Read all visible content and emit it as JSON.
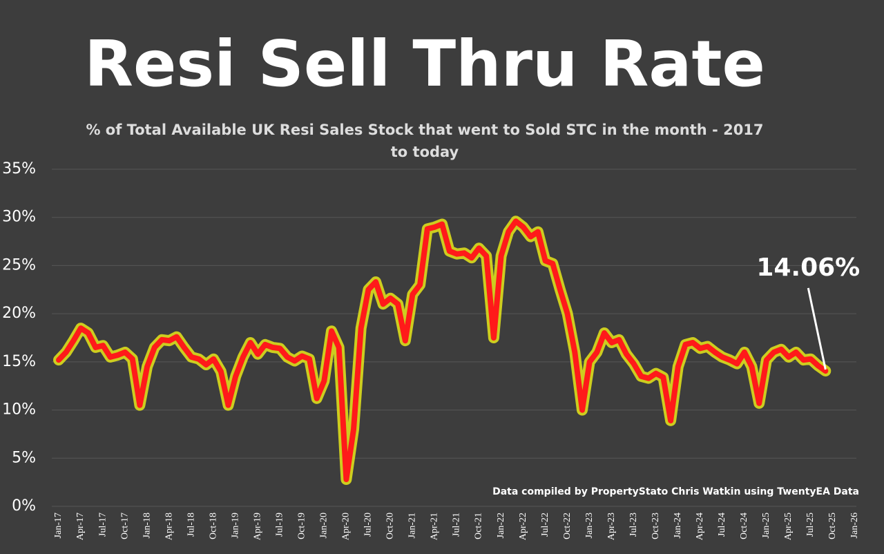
{
  "chart_data": {
    "type": "line",
    "title": "Resi Sell Thru Rate",
    "subtitle": "% of Total Available UK Resi Sales Stock that went to Sold STC in the month - 2017 to today",
    "source": "Data compiled by PropertyStato Chris Watkin using TwentyEA Data",
    "categories": [
      "Jan-17",
      null,
      null,
      "Apr-17",
      null,
      null,
      "Jul-17",
      null,
      null,
      "Oct-17",
      null,
      null,
      "Jan-18",
      null,
      null,
      "Apr-18",
      null,
      null,
      "Jul-18",
      null,
      null,
      "Oct-18",
      null,
      null,
      "Jan-19",
      null,
      null,
      "Apr-19",
      null,
      null,
      "Jul-19",
      null,
      null,
      "Oct-19",
      null,
      null,
      "Jan-20",
      null,
      null,
      "Apr-20",
      null,
      null,
      "Jul-20",
      null,
      null,
      "Oct-20",
      null,
      null,
      "Jan-21",
      null,
      null,
      "Apr-21",
      null,
      null,
      "Jul-21",
      null,
      null,
      "Oct-21",
      null,
      null,
      "Jan-22",
      null,
      null,
      "Apr-22",
      null,
      null,
      "Jul-22",
      null,
      null,
      "Oct-22",
      null,
      null,
      "Jan-23",
      null,
      null,
      "Apr-23",
      null,
      null,
      "Jul-23",
      null,
      null,
      "Oct-23",
      null,
      null,
      "Jan-24",
      null,
      null,
      "Apr-24",
      null,
      null,
      "Jul-24",
      null,
      null,
      "Oct-24",
      null,
      null,
      "Jan-25",
      null,
      null,
      "Apr-25",
      null,
      null,
      "Jul-25",
      null,
      null,
      "Oct-25",
      null,
      null,
      "Jan-26"
    ],
    "values": [
      15.2,
      16,
      17.2,
      18.5,
      18,
      16.5,
      16.7,
      15.5,
      15.7,
      16,
      15.3,
      10.5,
      14.5,
      16.5,
      17.3,
      17.2,
      17.6,
      16.5,
      15.5,
      15.3,
      14.7,
      15.3,
      14,
      10.5,
      13.5,
      15.5,
      17,
      15.8,
      16.8,
      16.5,
      16.4,
      15.5,
      15.1,
      15.6,
      15.3,
      11.2,
      13,
      18.2,
      16.5,
      2.8,
      8,
      18.5,
      22.5,
      23.3,
      21,
      21.6,
      21,
      17.2,
      22,
      23,
      28.8,
      29,
      29.3,
      26.5,
      26.2,
      26.3,
      25.8,
      26.8,
      26,
      17.5,
      26,
      28.5,
      29.6,
      29,
      28,
      28.5,
      25.5,
      25.2,
      22.5,
      20,
      16,
      10,
      15,
      16,
      18,
      17,
      17.3,
      15.8,
      14.8,
      13.5,
      13.3,
      13.8,
      13.4,
      8.9,
      14.5,
      16.8,
      17,
      16.4,
      16.6,
      16,
      15.5,
      15.2,
      14.8,
      16,
      14.5,
      10.7,
      15.2,
      16,
      16.3,
      15.5,
      16,
      15.2,
      15.3,
      14.6,
      14.06,
      null,
      null,
      null,
      null
    ],
    "value_labels": [
      null,
      null,
      null,
      null,
      null,
      null,
      null,
      null,
      null,
      null,
      null,
      null,
      null,
      null,
      null,
      null,
      null,
      null,
      null,
      null,
      null,
      null,
      null,
      null,
      null,
      null,
      null,
      null,
      null,
      null,
      null,
      null,
      null,
      null,
      null,
      null,
      null,
      null,
      null,
      null,
      null,
      null,
      null,
      null,
      null,
      null,
      null,
      null,
      null,
      null,
      null,
      null,
      null,
      null,
      null,
      null,
      null,
      null,
      null,
      null,
      null,
      null,
      null,
      null,
      null,
      null,
      null,
      null,
      null,
      null,
      null,
      null,
      null,
      null,
      null,
      null,
      null,
      null,
      null,
      null,
      null,
      null,
      null,
      null,
      null,
      null,
      null,
      null,
      null,
      null,
      null,
      null,
      null,
      null,
      null,
      null,
      null,
      null,
      null,
      null,
      null,
      null,
      null,
      null,
      "14.06%",
      null,
      null,
      null,
      null
    ],
    "color": "#ff1a1a",
    "glow_color": "#e6e61a",
    "ylim": [
      0,
      35
    ],
    "yticks": [
      {
        "value": 0,
        "label": "0%"
      },
      {
        "value": 5,
        "label": "5%"
      },
      {
        "value": 10,
        "label": "10%"
      },
      {
        "value": 15,
        "label": "15%"
      },
      {
        "value": 20,
        "label": "20%"
      },
      {
        "value": 25,
        "label": "25%"
      },
      {
        "value": 30,
        "label": "30%"
      },
      {
        "value": 35,
        "label": "35%"
      }
    ],
    "grid": true
  }
}
